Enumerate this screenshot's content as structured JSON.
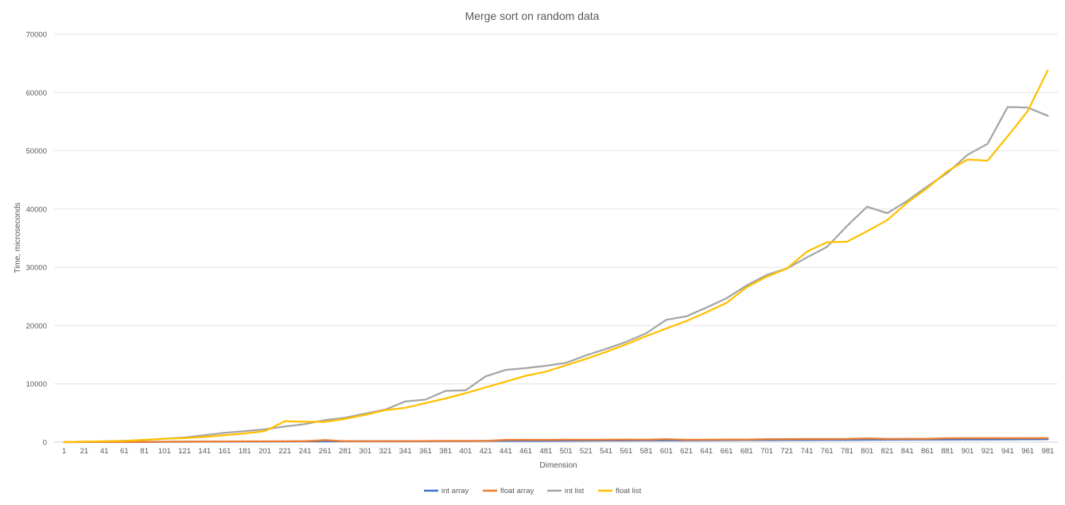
{
  "chart_data": {
    "type": "line",
    "title": "Merge sort on random data",
    "xlabel": "Dimension",
    "ylabel": "Time, microseconds",
    "ylim": [
      0,
      70000
    ],
    "yticks": [
      0,
      10000,
      20000,
      30000,
      40000,
      50000,
      60000,
      70000
    ],
    "grid": true,
    "legend_position": "bottom",
    "categories": [
      "1",
      "21",
      "41",
      "61",
      "81",
      "101",
      "121",
      "141",
      "161",
      "181",
      "201",
      "221",
      "241",
      "261",
      "281",
      "301",
      "321",
      "341",
      "361",
      "381",
      "401",
      "421",
      "441",
      "461",
      "481",
      "501",
      "521",
      "541",
      "561",
      "581",
      "601",
      "621",
      "641",
      "661",
      "681",
      "701",
      "721",
      "741",
      "761",
      "781",
      "801",
      "821",
      "841",
      "861",
      "881",
      "901",
      "921",
      "941",
      "961",
      "981"
    ],
    "series": [
      {
        "name": "int array",
        "color": "#4472C4",
        "values": [
          5,
          10,
          20,
          30,
          40,
          60,
          70,
          80,
          90,
          100,
          110,
          120,
          130,
          140,
          150,
          160,
          170,
          180,
          190,
          200,
          210,
          220,
          230,
          240,
          250,
          260,
          270,
          280,
          290,
          300,
          310,
          320,
          330,
          340,
          350,
          360,
          370,
          380,
          390,
          400,
          410,
          420,
          430,
          440,
          450,
          460,
          470,
          480,
          490,
          500
        ]
      },
      {
        "name": "float array",
        "color": "#ED7D31",
        "values": [
          10,
          20,
          30,
          40,
          60,
          80,
          100,
          110,
          120,
          130,
          140,
          150,
          160,
          350,
          150,
          160,
          170,
          180,
          190,
          200,
          210,
          220,
          400,
          410,
          400,
          420,
          410,
          420,
          430,
          420,
          500,
          410,
          420,
          430,
          440,
          520,
          530,
          540,
          550,
          560,
          650,
          560,
          570,
          580,
          680,
          690,
          690,
          700,
          700,
          700
        ]
      },
      {
        "name": "int list",
        "color": "#A5A5A5",
        "values": [
          20,
          80,
          150,
          250,
          350,
          600,
          800,
          1200,
          1600,
          1900,
          2200,
          2700,
          3100,
          3800,
          4200,
          4900,
          5600,
          7000,
          7300,
          8800,
          8900,
          11300,
          12400,
          12700,
          13100,
          13600,
          14900,
          16000,
          17200,
          18700,
          21000,
          21600,
          23100,
          24700,
          26900,
          28700,
          29800,
          31700,
          33500,
          37100,
          40400,
          39300,
          41400,
          43900,
          46200,
          49300,
          51200,
          57500,
          57400,
          56000
        ]
      },
      {
        "name": "float list",
        "color": "#FFC000",
        "values": [
          20,
          80,
          150,
          200,
          400,
          600,
          700,
          900,
          1200,
          1500,
          1900,
          3600,
          3500,
          3500,
          4000,
          4700,
          5500,
          5900,
          6700,
          7500,
          8400,
          9400,
          10400,
          11400,
          12100,
          13200,
          14300,
          15500,
          16800,
          18200,
          19500,
          20800,
          22300,
          23900,
          26600,
          28400,
          29800,
          32700,
          34300,
          34400,
          36200,
          38100,
          41100,
          43600,
          46500,
          48500,
          48300,
          52500,
          56800,
          63800
        ]
      }
    ]
  }
}
